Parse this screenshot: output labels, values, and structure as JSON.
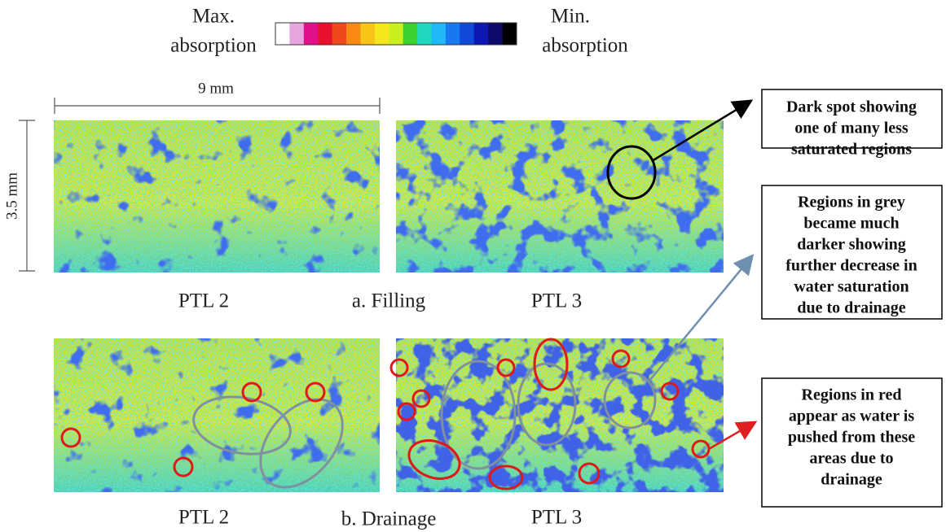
{
  "colorbar": {
    "left_label": [
      "Max.",
      "absorption"
    ],
    "right_label": [
      "Min.",
      "absorption"
    ]
  },
  "scale": {
    "horizontal": "9 mm",
    "vertical": "3.5 mm"
  },
  "rows": [
    {
      "left": "PTL 2",
      "caption": "a. Filling",
      "right": "PTL 3"
    },
    {
      "left": "PTL 2",
      "caption": "b. Drainage",
      "right": "PTL 3"
    }
  ],
  "annotations": [
    {
      "lines": [
        "Dark spot showing",
        "one of many less",
        "saturated regions"
      ]
    },
    {
      "lines": [
        "Regions in grey",
        "became much",
        "darker showing",
        "further decrease in",
        "water saturation",
        "due to drainage"
      ]
    },
    {
      "lines": [
        "Regions in red",
        "appear as water is",
        "pushed from these",
        "areas due to",
        "drainage"
      ]
    }
  ]
}
